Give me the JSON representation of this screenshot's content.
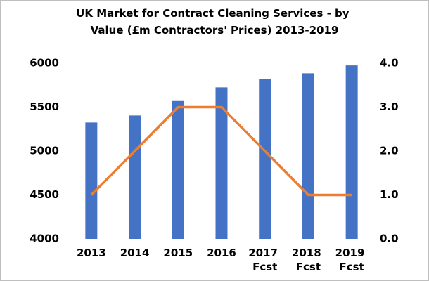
{
  "chart_data": {
    "type": "bar_line",
    "title": "UK Market for Contract Cleaning Services - by Value (£m Contractors' Prices) 2013-2019",
    "categories": [
      "2013",
      "2014",
      "2015",
      "2016",
      "2017 Fcst",
      "2018 Fcst",
      "2019 Fcst"
    ],
    "series": [
      {
        "type": "bar",
        "color": "#4472c4",
        "values": [
          5325,
          5405,
          5570,
          5725,
          5820,
          5885,
          5975
        ]
      },
      {
        "type": "line",
        "axis": "y2",
        "color": "#ed7d31",
        "values": [
          1,
          2,
          3,
          3,
          2,
          1,
          1
        ]
      }
    ],
    "ylim": [
      4000,
      6000
    ],
    "yticks": [
      4000,
      4500,
      5000,
      5500,
      6000
    ],
    "y2lim": [
      0,
      4
    ],
    "y2ticks": [
      {
        "value": 0,
        "label": "0.0"
      },
      {
        "value": 1,
        "label": "1.0"
      },
      {
        "value": 2,
        "label": "2.0"
      },
      {
        "value": 3,
        "label": "3.0"
      },
      {
        "value": 4,
        "label": "4.0"
      }
    ],
    "grid": false
  }
}
